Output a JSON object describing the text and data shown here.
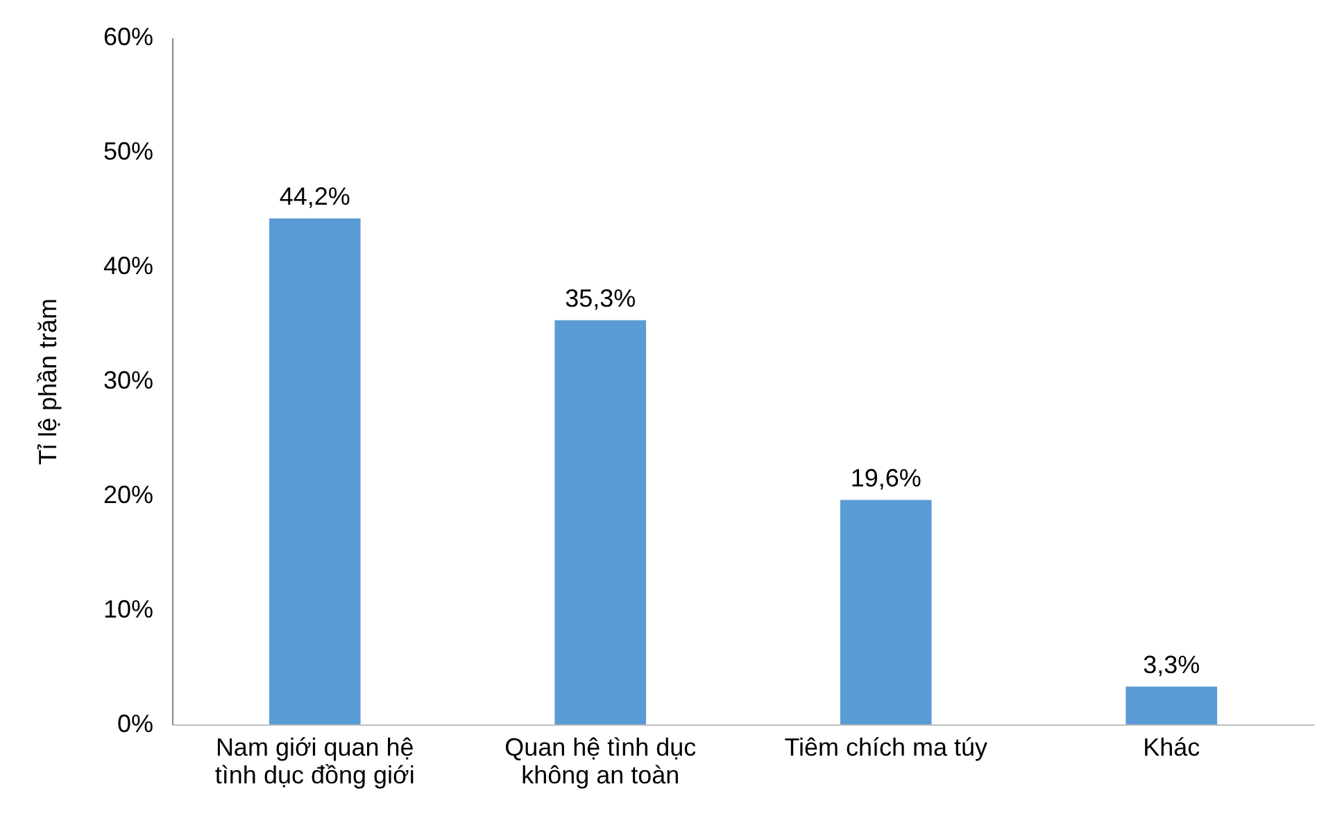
{
  "chart_data": {
    "type": "bar",
    "ylabel": "Tỉ lệ phần trăm",
    "categories": [
      "Nam giới quan hệ tình dục đồng giới",
      "Quan hệ tình dục không an toàn",
      "Tiêm chích ma túy",
      "Khác"
    ],
    "values": [
      44.2,
      35.3,
      19.6,
      3.3
    ],
    "value_labels": [
      "44,2%",
      "35,3%",
      "19,6%",
      "3,3%"
    ],
    "color": "#5b9bd5",
    "ylim": [
      0,
      60
    ],
    "yticks": [
      {
        "value": 0,
        "label": "0%"
      },
      {
        "value": 10,
        "label": "10%"
      },
      {
        "value": 20,
        "label": "20%"
      },
      {
        "value": 30,
        "label": "30%"
      },
      {
        "value": 40,
        "label": "40%"
      },
      {
        "value": 50,
        "label": "50%"
      },
      {
        "value": 60,
        "label": "60%"
      }
    ],
    "grid": false
  }
}
